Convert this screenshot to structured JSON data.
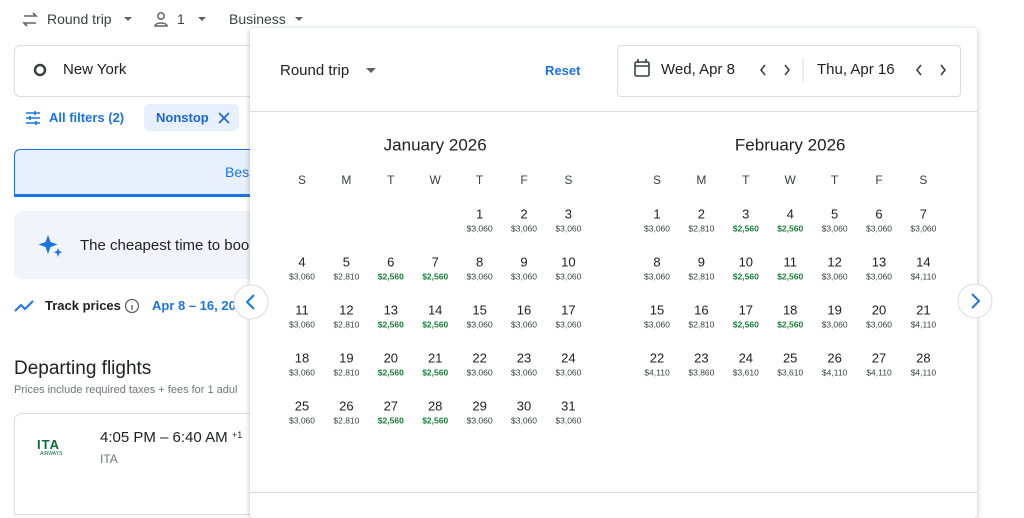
{
  "topbar": {
    "trip_type": "Round trip",
    "passengers": "1",
    "cabin": "Business"
  },
  "search": {
    "origin": "New York",
    "filters": "All filters (2)",
    "chip": "Nonstop"
  },
  "tabs": {
    "active": "Bes"
  },
  "insight": "The cheapest time to boo",
  "track": {
    "label": "Track prices",
    "dates": "Apr 8 – 16, 20"
  },
  "results": {
    "title": "Departing flights",
    "note": "Prices include required taxes + fees for 1 adul",
    "flights": [
      {
        "logo": "ITA",
        "logo_sub": "AIRWAYS",
        "times": "4:05 PM – 6:40 AM",
        "day_offset": "+1",
        "airline": "ITA"
      }
    ]
  },
  "dialog": {
    "trip_type": "Round trip",
    "reset": "Reset",
    "depart": "Wed, Apr 8",
    "return": "Thu, Apr 16",
    "weekdays": [
      "S",
      "M",
      "T",
      "W",
      "T",
      "F",
      "S"
    ],
    "low_color": "#188038",
    "months": [
      {
        "title": "January 2026",
        "days": [
          null,
          null,
          null,
          null,
          1,
          2,
          3,
          4,
          5,
          6,
          7,
          8,
          9,
          10,
          11,
          12,
          13,
          14,
          15,
          16,
          17,
          18,
          19,
          20,
          21,
          22,
          23,
          24,
          25,
          26,
          27,
          28,
          29,
          30,
          31
        ],
        "prices": [
          null,
          null,
          null,
          null,
          "$3,060",
          "$3,060",
          "$3,060",
          "$3,060",
          "$2,810",
          "$2,560",
          "$2,560",
          "$3,060",
          "$3,060",
          "$3,060",
          "$3,060",
          "$2,810",
          "$2,560",
          "$2,560",
          "$3,060",
          "$3,060",
          "$3,060",
          "$3,060",
          "$2,810",
          "$2,560",
          "$2,560",
          "$3,060",
          "$3,060",
          "$3,060",
          "$3,060",
          "$2,810",
          "$2,560",
          "$2,560",
          "$3,060",
          "$3,060",
          "$3,060"
        ]
      },
      {
        "title": "February 2026",
        "days": [
          1,
          2,
          3,
          4,
          5,
          6,
          7,
          8,
          9,
          10,
          11,
          12,
          13,
          14,
          15,
          16,
          17,
          18,
          19,
          20,
          21,
          22,
          23,
          24,
          25,
          26,
          27,
          28
        ],
        "prices": [
          "$3,060",
          "$2,810",
          "$2,560",
          "$2,560",
          "$3,060",
          "$3,060",
          "$3,060",
          "$3,060",
          "$2,810",
          "$2,560",
          "$2,560",
          "$3,060",
          "$3,060",
          "$4,110",
          "$3,060",
          "$2,810",
          "$2,560",
          "$2,560",
          "$3,060",
          "$3,060",
          "$4,110",
          "$4,110",
          "$3,860",
          "$3,610",
          "$3,610",
          "$4,110",
          "$4,110",
          "$4,110"
        ]
      }
    ]
  }
}
